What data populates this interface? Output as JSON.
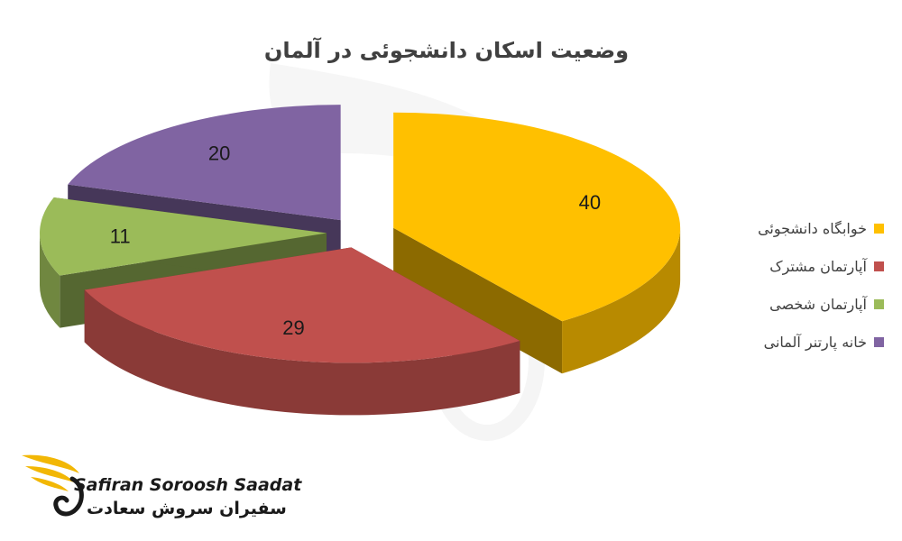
{
  "chart_data": {
    "type": "pie",
    "title": "وضعیت اسکان دانشجوئی در آلمان",
    "categories": [
      "خوابگاه دانشجوئی",
      "آپارتمان مشترک",
      "آپارتمان شخصی",
      "خانه پارتنر آلمانی"
    ],
    "values": [
      40,
      29,
      11,
      20
    ],
    "colors": [
      "#FFC000",
      "#C0504D",
      "#9BBB59",
      "#8064A2"
    ],
    "style": "3d-exploded",
    "legend_position": "right",
    "data_labels": true
  },
  "logo": {
    "name_en": "Safiran Soroosh Saadat",
    "name_fa": "سفیران سروش سعادت",
    "icon": "swan-wing-icon",
    "accent_color": "#F2B705"
  },
  "watermark": {
    "icon": "swan-watermark-icon"
  }
}
